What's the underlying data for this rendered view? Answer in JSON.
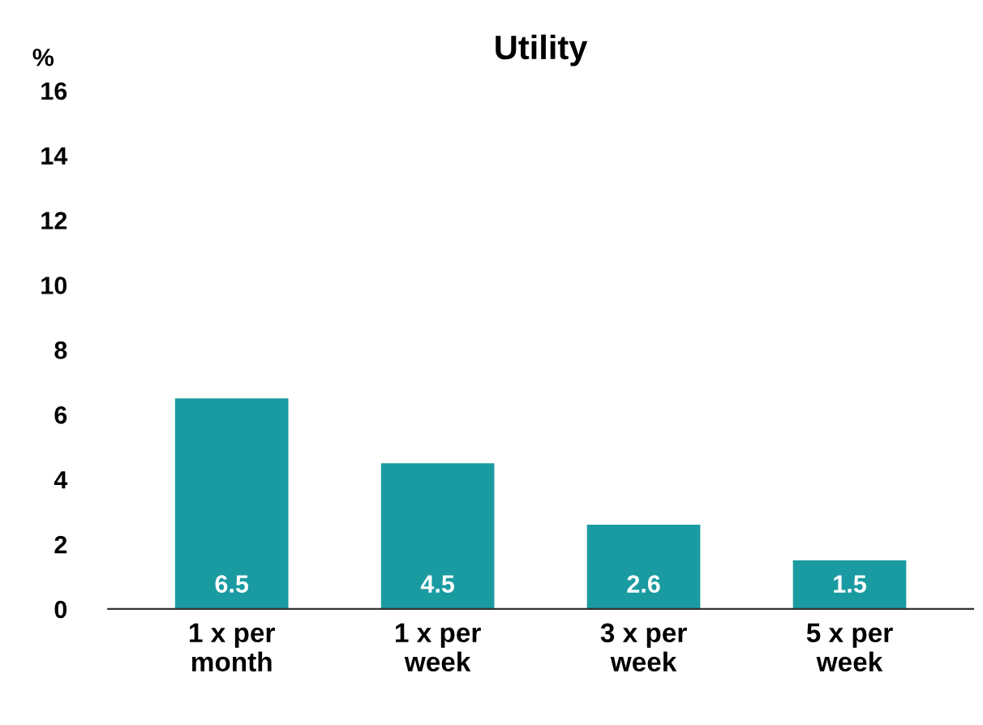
{
  "chart_data": {
    "type": "bar",
    "title": "Utility",
    "ylabel": "%",
    "categories": [
      "1 x per\nmonth",
      "1 x per\nweek",
      "3 x per\nweek",
      "5 x per\nweek"
    ],
    "values": [
      6.5,
      4.5,
      2.6,
      1.5
    ],
    "color": "#1a9ba1",
    "ylim": [
      0,
      16
    ],
    "yticks": [
      0,
      2,
      4,
      6,
      8,
      10,
      12,
      14,
      16
    ],
    "grid": false,
    "data_labels": true,
    "legend": false
  }
}
